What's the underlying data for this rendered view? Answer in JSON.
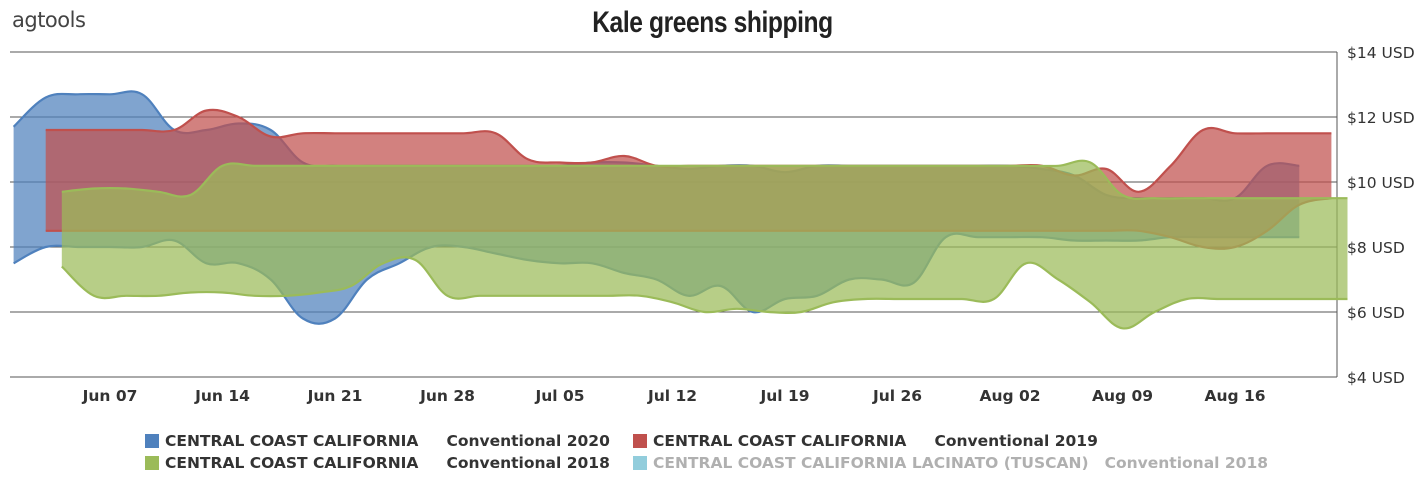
{
  "header": {
    "logo_text": "agtools"
  },
  "chart_data": {
    "type": "area",
    "title": "Kale greens shipping",
    "xlabel": "",
    "ylabel": "",
    "y_axis_position": "right",
    "ylim": [
      4,
      14
    ],
    "yticks": [
      4,
      6,
      8,
      10,
      12,
      14
    ],
    "ytick_labels": [
      "$4 USD",
      "$6 USD",
      "$8 USD",
      "$10 USD",
      "$12 USD",
      "$14 USD"
    ],
    "xticks": [
      "Jun 07",
      "Jun 14",
      "Jun 21",
      "Jun 28",
      "Jul 05",
      "Jul 12",
      "Jul 19",
      "Jul 26",
      "Aug 02",
      "Aug 09",
      "Aug 16"
    ],
    "grid": true,
    "legend_position": "bottom",
    "series": [
      {
        "name": "CENTRAL COAST CALIFORNIA   Conventional 2020",
        "color": "#4f81bd",
        "x": [
          "Jun 01",
          "Jun 03",
          "Jun 05",
          "Jun 07",
          "Jun 09",
          "Jun 11",
          "Jun 13",
          "Jun 15",
          "Jun 17",
          "Jun 19",
          "Jun 21",
          "Jun 23",
          "Jun 25",
          "Jun 27",
          "Jun 29",
          "Jul 01",
          "Jul 03",
          "Jul 05",
          "Jul 07",
          "Jul 09",
          "Jul 11",
          "Jul 13",
          "Jul 15",
          "Jul 17",
          "Jul 19",
          "Jul 21",
          "Jul 23",
          "Jul 25",
          "Jul 27",
          "Jul 29",
          "Jul 31",
          "Aug 02",
          "Aug 04",
          "Aug 06",
          "Aug 08",
          "Aug 10",
          "Aug 12",
          "Aug 14",
          "Aug 16",
          "Aug 18",
          "Aug 20"
        ],
        "high": [
          11.7,
          12.6,
          12.7,
          12.7,
          12.7,
          11.6,
          11.6,
          11.8,
          11.6,
          10.6,
          10.5,
          10.5,
          10.5,
          10.5,
          10.5,
          10.5,
          10.5,
          10.5,
          10.6,
          10.6,
          10.5,
          10.4,
          10.5,
          10.5,
          10.3,
          10.5,
          10.5,
          10.5,
          10.5,
          10.5,
          10.5,
          10.5,
          10.4,
          10.2,
          9.6,
          9.5,
          9.5,
          9.5,
          9.5,
          10.5,
          10.5
        ],
        "low": [
          7.5,
          8.0,
          8.0,
          8.0,
          8.0,
          8.2,
          7.5,
          7.5,
          7.0,
          5.8,
          5.8,
          7.0,
          7.5,
          8.0,
          8.0,
          7.8,
          7.6,
          7.5,
          7.5,
          7.2,
          7.0,
          6.5,
          6.8,
          6.0,
          6.4,
          6.5,
          7.0,
          7.0,
          6.9,
          8.3,
          8.3,
          8.3,
          8.3,
          8.2,
          8.2,
          8.2,
          8.3,
          8.3,
          8.3,
          8.3,
          8.3
        ]
      },
      {
        "name": "CENTRAL COAST CALIFORNIA   Conventional 2019",
        "color": "#c0504d",
        "x": [
          "Jun 03",
          "Jun 05",
          "Jun 07",
          "Jun 09",
          "Jun 11",
          "Jun 13",
          "Jun 15",
          "Jun 17",
          "Jun 19",
          "Jun 21",
          "Jun 23",
          "Jun 25",
          "Jun 27",
          "Jun 29",
          "Jul 01",
          "Jul 03",
          "Jul 05",
          "Jul 07",
          "Jul 09",
          "Jul 11",
          "Jul 13",
          "Jul 15",
          "Jul 17",
          "Jul 19",
          "Jul 21",
          "Jul 23",
          "Jul 25",
          "Jul 27",
          "Jul 29",
          "Jul 31",
          "Aug 02",
          "Aug 04",
          "Aug 06",
          "Aug 08",
          "Aug 10",
          "Aug 12",
          "Aug 14",
          "Aug 16",
          "Aug 18",
          "Aug 20",
          "Aug 22"
        ],
        "high": [
          11.6,
          11.6,
          11.6,
          11.6,
          11.6,
          12.2,
          12.0,
          11.4,
          11.5,
          11.5,
          11.5,
          11.5,
          11.5,
          11.5,
          11.5,
          10.7,
          10.6,
          10.6,
          10.8,
          10.5,
          10.5,
          10.5,
          10.5,
          10.5,
          10.5,
          10.5,
          10.5,
          10.5,
          10.5,
          10.5,
          10.5,
          10.5,
          10.2,
          10.4,
          9.7,
          10.5,
          11.6,
          11.5,
          11.5,
          11.5,
          11.5
        ],
        "low": [
          8.5,
          8.5,
          8.5,
          8.5,
          8.5,
          8.5,
          8.5,
          8.5,
          8.5,
          8.5,
          8.5,
          8.5,
          8.5,
          8.5,
          8.5,
          8.5,
          8.5,
          8.5,
          8.5,
          8.5,
          8.5,
          8.5,
          8.5,
          8.5,
          8.5,
          8.5,
          8.5,
          8.5,
          8.5,
          8.5,
          8.5,
          8.5,
          8.5,
          8.5,
          8.5,
          8.3,
          8.0,
          8.0,
          8.5,
          9.3,
          9.5
        ]
      },
      {
        "name": "CENTRAL COAST CALIFORNIA   Conventional 2018",
        "color": "#9bbb59",
        "x": [
          "Jun 04",
          "Jun 06",
          "Jun 08",
          "Jun 10",
          "Jun 12",
          "Jun 14",
          "Jun 16",
          "Jun 18",
          "Jun 20",
          "Jun 22",
          "Jun 24",
          "Jun 26",
          "Jun 28",
          "Jun 30",
          "Jul 02",
          "Jul 04",
          "Jul 06",
          "Jul 08",
          "Jul 10",
          "Jul 12",
          "Jul 14",
          "Jul 16",
          "Jul 18",
          "Jul 20",
          "Jul 22",
          "Jul 24",
          "Jul 26",
          "Jul 28",
          "Jul 30",
          "Aug 01",
          "Aug 03",
          "Aug 05",
          "Aug 07",
          "Aug 09",
          "Aug 11",
          "Aug 13",
          "Aug 15",
          "Aug 17",
          "Aug 19",
          "Aug 21",
          "Aug 23"
        ],
        "high": [
          9.7,
          9.8,
          9.8,
          9.7,
          9.6,
          10.5,
          10.5,
          10.5,
          10.5,
          10.5,
          10.5,
          10.5,
          10.5,
          10.5,
          10.5,
          10.5,
          10.5,
          10.5,
          10.5,
          10.5,
          10.5,
          10.5,
          10.5,
          10.5,
          10.5,
          10.5,
          10.5,
          10.5,
          10.5,
          10.5,
          10.5,
          10.5,
          10.6,
          9.6,
          9.5,
          9.5,
          9.5,
          9.5,
          9.5,
          9.5,
          9.5
        ],
        "low": [
          7.4,
          6.5,
          6.5,
          6.5,
          6.6,
          6.6,
          6.5,
          6.5,
          6.6,
          6.8,
          7.5,
          7.6,
          6.5,
          6.5,
          6.5,
          6.5,
          6.5,
          6.5,
          6.5,
          6.3,
          6.0,
          6.1,
          6.0,
          6.0,
          6.3,
          6.4,
          6.4,
          6.4,
          6.4,
          6.4,
          7.5,
          7.0,
          6.3,
          5.5,
          6.0,
          6.4,
          6.4,
          6.4,
          6.4,
          6.4,
          6.4
        ]
      },
      {
        "name": "CENTRAL COAST CALIFORNIA  LACINATO (TUSCAN)   Conventional 2018",
        "color": "#92cddc",
        "hidden": true
      }
    ]
  },
  "legend": [
    {
      "region": "CENTRAL COAST CALIFORNIA",
      "label": "Conventional 2020",
      "color": "#4f81bd"
    },
    {
      "region": "CENTRAL COAST CALIFORNIA",
      "label": "Conventional 2019",
      "color": "#c0504d"
    },
    {
      "region": "CENTRAL COAST CALIFORNIA",
      "label": "Conventional 2018",
      "color": "#9bbb59"
    },
    {
      "region": "CENTRAL COAST CALIFORNIA  LACINATO (TUSCAN)",
      "label": "Conventional 2018",
      "color": "#92cddc",
      "hidden": true
    }
  ]
}
